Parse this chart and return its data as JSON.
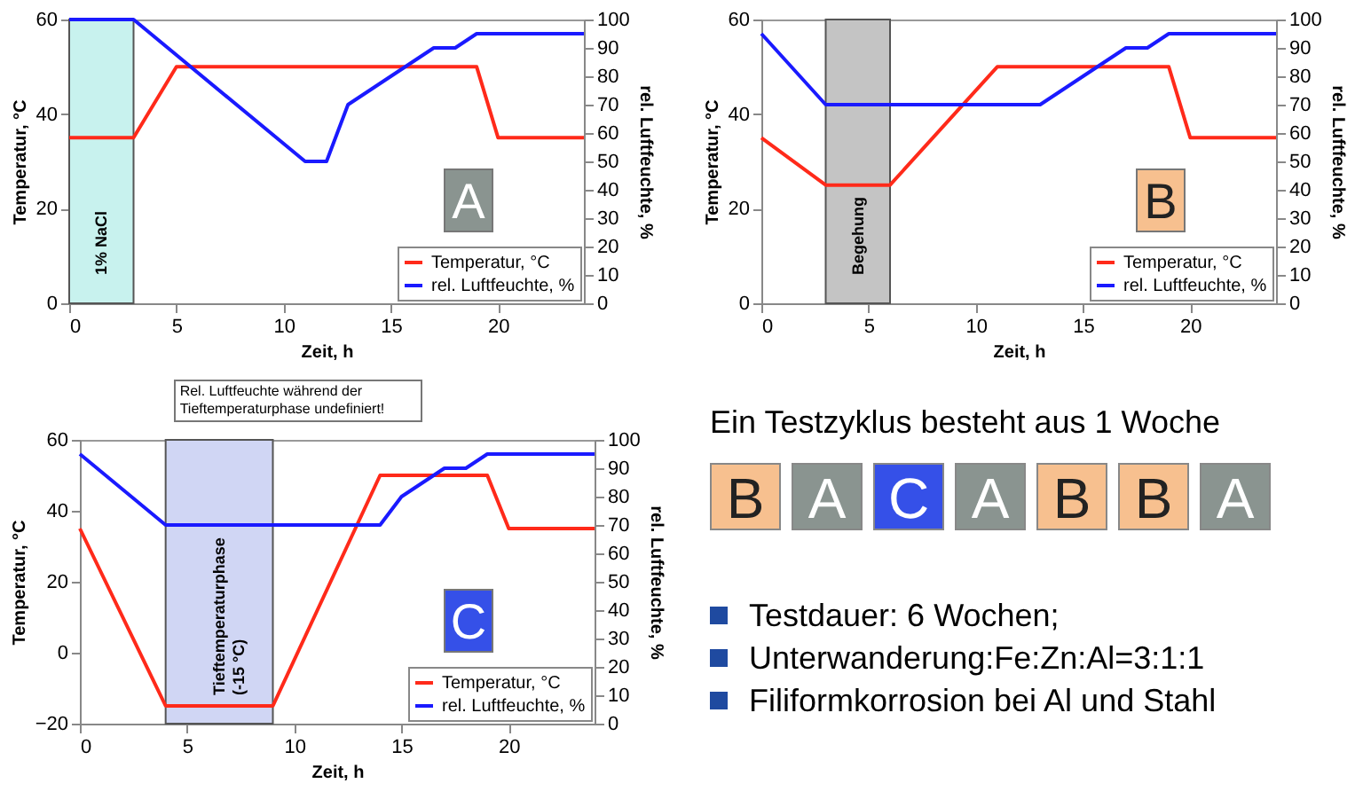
{
  "chart_data": [
    {
      "type": "line",
      "xlabel": "Zeit, h",
      "ylabel": "Temperatur, °C",
      "y2label": "rel. Luftfeuchte, %",
      "xlim": [
        0,
        24
      ],
      "xticks": [
        0,
        5,
        10,
        15,
        20
      ],
      "ylim": [
        0,
        60
      ],
      "yticks": [
        0,
        20,
        40,
        60
      ],
      "y2lim": [
        0,
        100
      ],
      "y2ticks": [
        0,
        10,
        20,
        30,
        40,
        50,
        60,
        70,
        80,
        90,
        100
      ],
      "legend": "bottom right",
      "series": [
        {
          "name": "Temperatur, °C",
          "color": "#ff2a1a",
          "x": [
            0,
            3,
            5,
            19,
            20,
            24
          ],
          "values": [
            35,
            35,
            50,
            50,
            35,
            35
          ]
        },
        {
          "name": "rel. Luftfeuchte, %",
          "color": "#1a1aff",
          "axis": "y2",
          "x": [
            0,
            3,
            11,
            12,
            13,
            17,
            18,
            19,
            24
          ],
          "values": [
            100,
            100,
            50,
            50,
            70,
            90,
            90,
            95,
            95
          ]
        }
      ],
      "bands": [
        {
          "axis": "x",
          "from": 0,
          "to": 3,
          "label": "1% NaCl",
          "color": "#c8f2ee"
        }
      ],
      "annotations": [
        "A"
      ]
    },
    {
      "type": "line",
      "xlabel": "Zeit, h",
      "ylabel": "Temperatur, °C",
      "y2label": "rel. Luftfeuchte, %",
      "xlim": [
        0,
        24
      ],
      "xticks": [
        0,
        5,
        10,
        15,
        20
      ],
      "ylim": [
        0,
        60
      ],
      "yticks": [
        0,
        20,
        40,
        60
      ],
      "y2lim": [
        0,
        100
      ],
      "y2ticks": [
        0,
        10,
        20,
        30,
        40,
        50,
        60,
        70,
        80,
        90,
        100
      ],
      "legend": "bottom right",
      "series": [
        {
          "name": "Temperatur, °C",
          "color": "#ff2a1a",
          "x": [
            0,
            3,
            6,
            11,
            19,
            20,
            24
          ],
          "values": [
            35,
            25,
            25,
            50,
            50,
            35,
            35
          ]
        },
        {
          "name": "rel. Luftfeuchte, %",
          "color": "#1a1aff",
          "axis": "y2",
          "x": [
            0,
            3,
            13,
            17,
            18,
            19,
            24
          ],
          "values": [
            95,
            70,
            70,
            90,
            90,
            95,
            95
          ]
        }
      ],
      "bands": [
        {
          "axis": "x",
          "from": 3,
          "to": 6,
          "label": "Begehung",
          "color": "#c4c4c4"
        }
      ],
      "annotations": [
        "B"
      ]
    },
    {
      "type": "line",
      "xlabel": "Zeit, h",
      "ylabel": "Temperatur, °C",
      "y2label": "rel. Luftfeuchte, %",
      "xlim": [
        0,
        24
      ],
      "xticks": [
        0,
        5,
        10,
        15,
        20
      ],
      "ylim": [
        -20,
        60
      ],
      "yticks": [
        -20,
        0,
        20,
        40,
        60
      ],
      "y2lim": [
        0,
        100
      ],
      "y2ticks": [
        0,
        10,
        20,
        30,
        40,
        50,
        60,
        70,
        80,
        90,
        100
      ],
      "legend": "bottom right",
      "series": [
        {
          "name": "Temperatur, °C",
          "color": "#ff2a1a",
          "x": [
            0,
            4,
            9,
            14,
            19,
            20,
            24
          ],
          "values": [
            35,
            -15,
            -15,
            50,
            50,
            35,
            35
          ]
        },
        {
          "name": "rel. Luftfeuchte, %",
          "color": "#1a1aff",
          "axis": "y2",
          "x": [
            0,
            4,
            14,
            15,
            17,
            18,
            19,
            24
          ],
          "values": [
            95,
            70,
            70,
            80,
            90,
            90,
            95,
            95
          ]
        }
      ],
      "bands": [
        {
          "axis": "x",
          "from": 4,
          "to": 9,
          "label": "Tieftemperaturphase\n(-15 °C)",
          "color": "#d0d6f4"
        }
      ],
      "annotations": [
        "Rel. Luftfeuchte während der Tieftemperaturphase undefiniert!",
        "C"
      ]
    },
    {
      "type": "other",
      "title": "Ein Testzyklus besteht aus 1 Woche",
      "categories": [
        "B",
        "A",
        "C",
        "A",
        "B",
        "B",
        "A"
      ],
      "annotations": [
        "Testdauer: 6 Wochen;",
        "Unterwanderung:Fe:Zn:Al=3:1:1",
        "Filiformkorrosion bei Al und Stahl"
      ]
    }
  ]
}
